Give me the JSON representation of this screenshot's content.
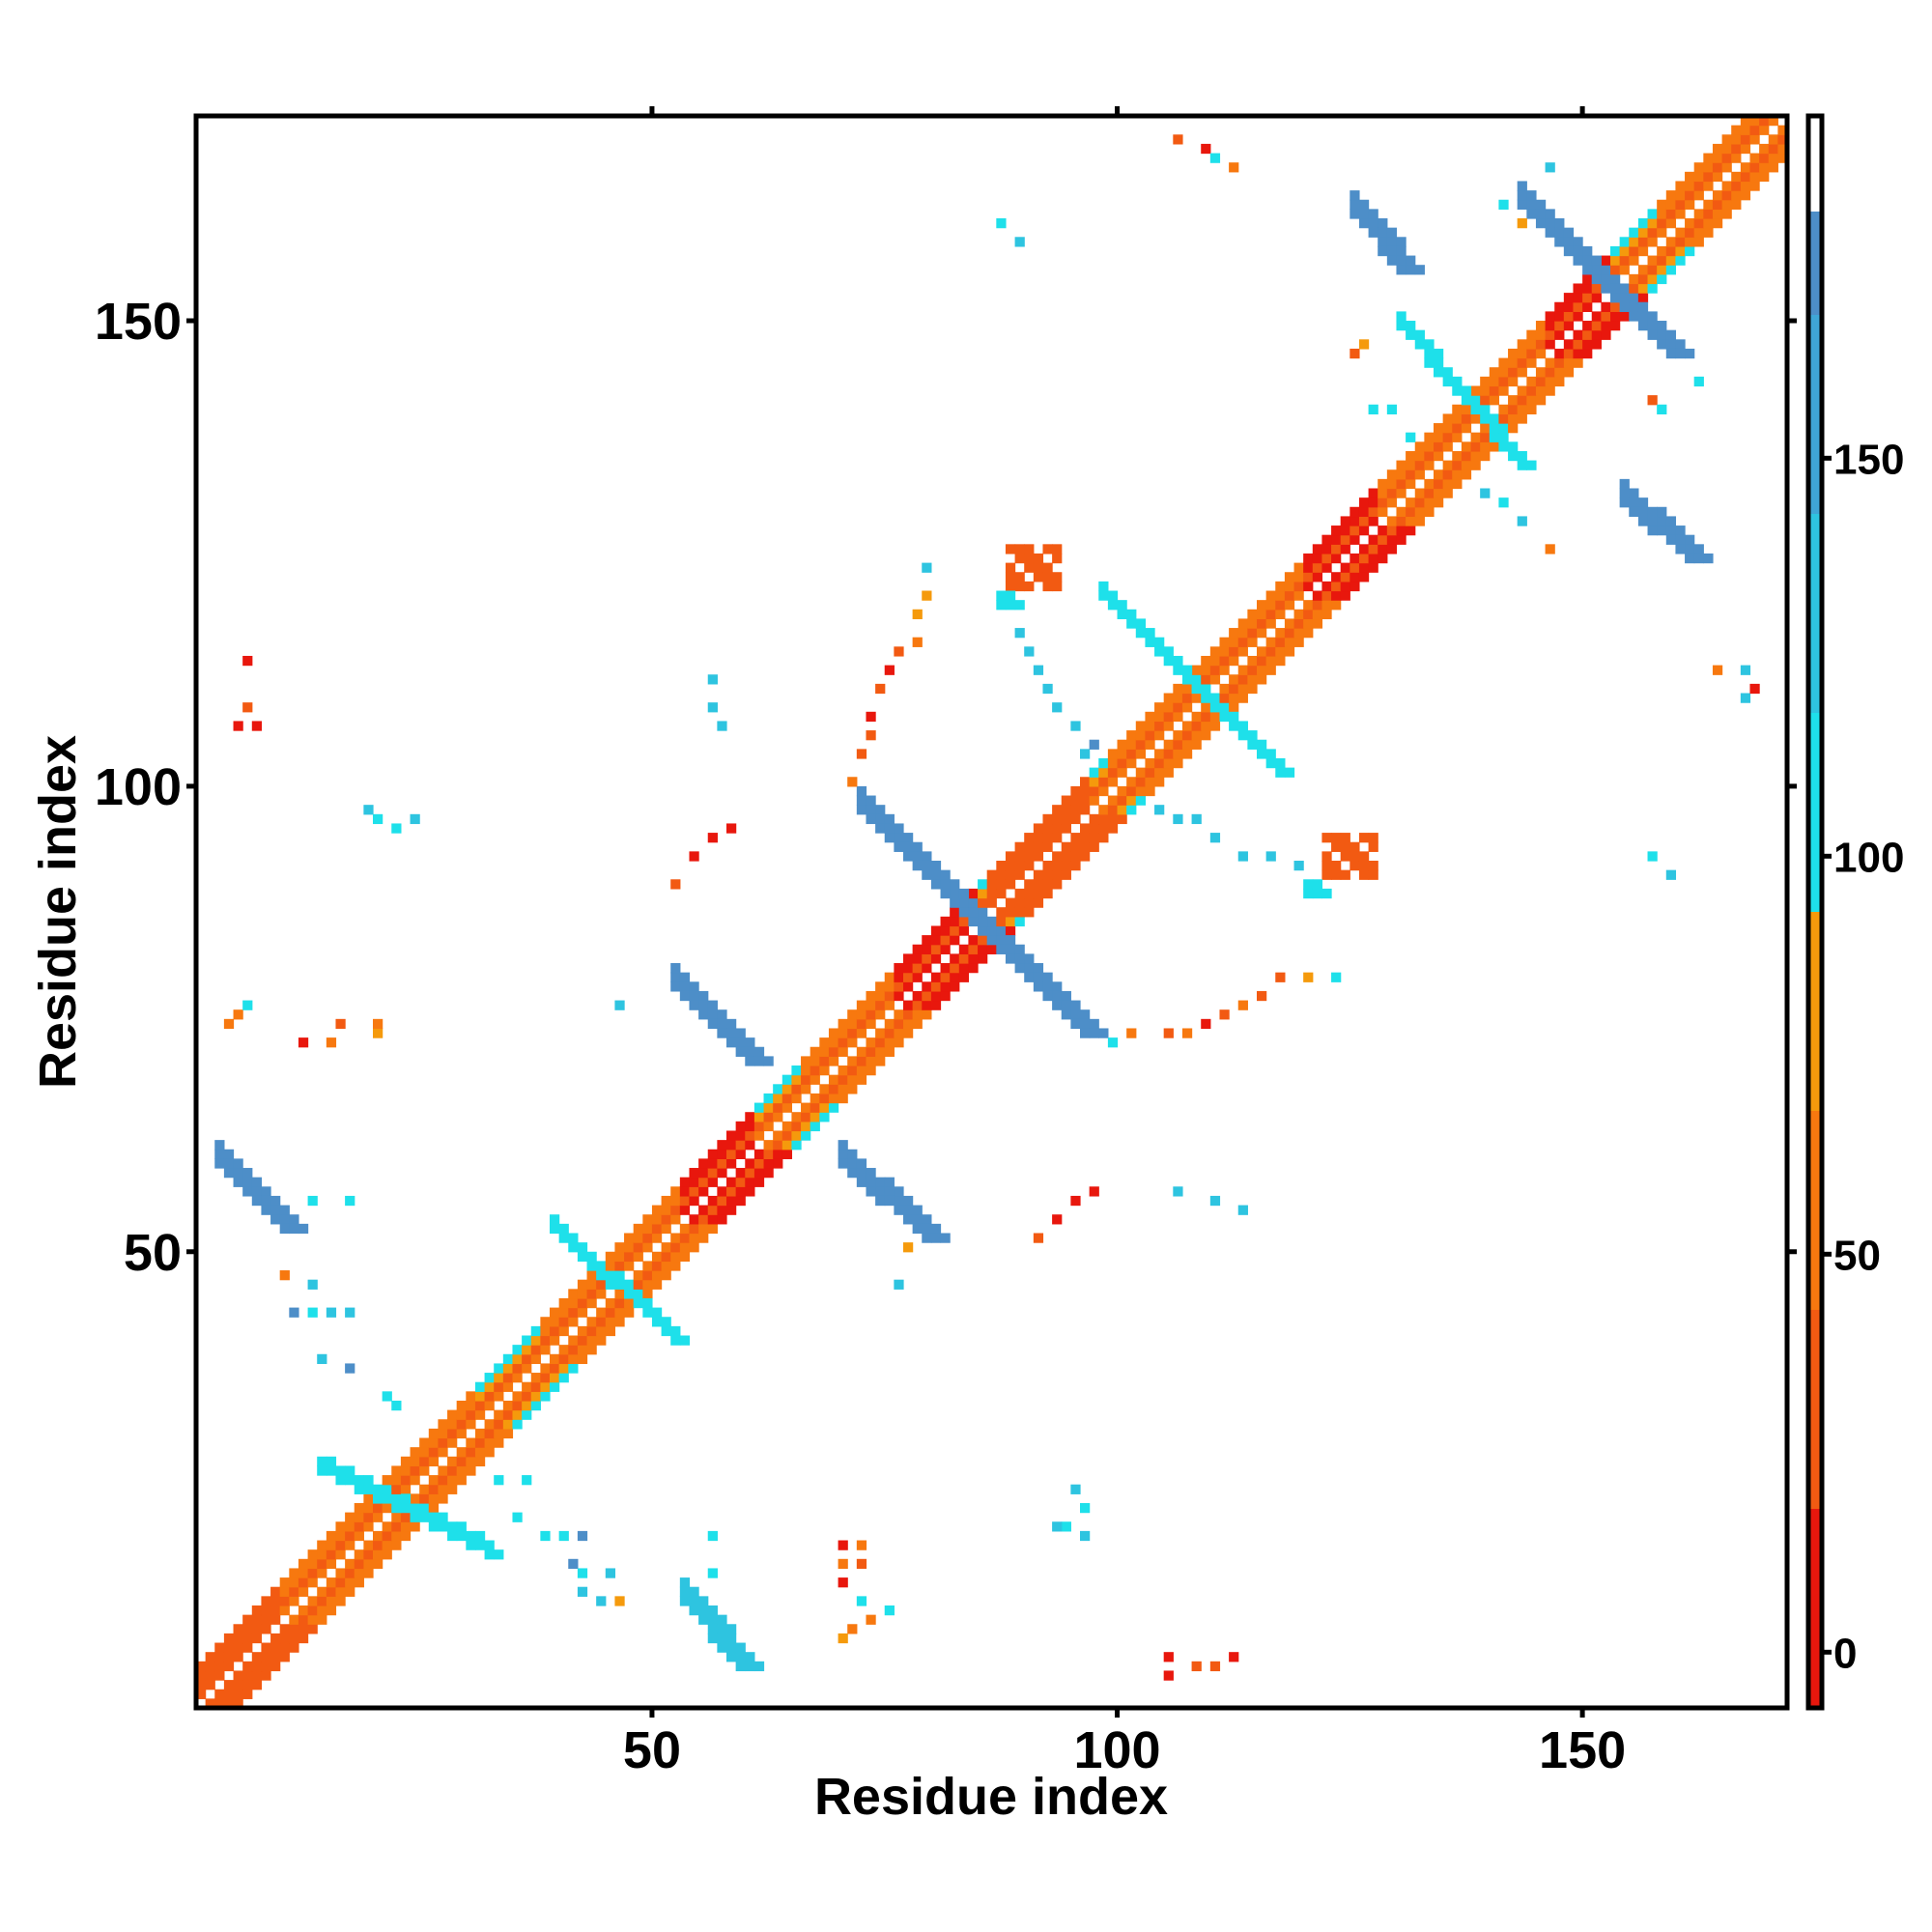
{
  "chart_data": {
    "type": "heatmap",
    "title": "",
    "xlabel": "Residue index",
    "ylabel": "Residue index",
    "n_residues": 171,
    "xlim": [
      1,
      171
    ],
    "ylim": [
      1,
      171
    ],
    "x_ticks": [
      50,
      100,
      150
    ],
    "y_ticks": [
      50,
      100,
      150
    ],
    "colorbar": {
      "ticks": [
        0,
        50,
        100,
        150
      ],
      "range": [
        -7,
        193
      ],
      "stops": [
        {
          "from": -7,
          "to": 18,
          "color": "#e8170d"
        },
        {
          "from": 18,
          "to": 43,
          "color": "#f25a12"
        },
        {
          "from": 43,
          "to": 68,
          "color": "#f7780f"
        },
        {
          "from": 68,
          "to": 93,
          "color": "#f59a0c"
        },
        {
          "from": 93,
          "to": 118,
          "color": "#1ee0ea"
        },
        {
          "from": 118,
          "to": 143,
          "color": "#2ec4e0"
        },
        {
          "from": 143,
          "to": 168,
          "color": "#3fa6d6"
        },
        {
          "from": 168,
          "to": 181,
          "color": "#4d8ec8"
        },
        {
          "from": 181,
          "to": 193,
          "color": "#ffffff"
        }
      ]
    },
    "palette": {
      "red": "#e8170d",
      "orange_red": "#f25a12",
      "orange": "#f7780f",
      "amber": "#f59a0c",
      "cyan": "#1ee0ea",
      "light_blue": "#2ec4e0",
      "mid_blue": "#3fa6d6",
      "steel_blue": "#4d8ec8"
    },
    "features": [
      {
        "kind": "diagonal",
        "from": 1,
        "to": 171,
        "band": [
          {
            "offset": 1,
            "color": "#f7780f"
          },
          {
            "offset": 2,
            "color": "#f25a12"
          },
          {
            "offset": 3,
            "color": "#f59a0c"
          },
          {
            "offset": 4,
            "color": "#1ee0ea"
          }
        ]
      },
      {
        "kind": "helix",
        "from": 1,
        "to": 9,
        "color": "#f25a12"
      },
      {
        "kind": "helix",
        "from": 10,
        "to": 30,
        "color": "#f7780f"
      },
      {
        "kind": "helix",
        "from": 38,
        "to": 52,
        "color": "#f7780f"
      },
      {
        "kind": "helix",
        "from": 53,
        "to": 60,
        "color": "#e8170d"
      },
      {
        "kind": "helix",
        "from": 66,
        "to": 76,
        "color": "#f7780f"
      },
      {
        "kind": "helix",
        "from": 76,
        "to": 84,
        "color": "#e8170d"
      },
      {
        "kind": "helix",
        "from": 86,
        "to": 96,
        "color": "#f25a12"
      },
      {
        "kind": "helix",
        "from": 99,
        "to": 120,
        "color": "#f7780f"
      },
      {
        "kind": "helix",
        "from": 120,
        "to": 128,
        "color": "#e8170d"
      },
      {
        "kind": "helix",
        "from": 128,
        "to": 146,
        "color": "#f7780f"
      },
      {
        "kind": "helix",
        "from": 146,
        "to": 152,
        "color": "#e8170d"
      },
      {
        "kind": "helix",
        "from": 158,
        "to": 171,
        "color": "#f7780f"
      },
      {
        "kind": "anti",
        "start": [
          3,
          59
        ],
        "end": [
          10,
          52
        ],
        "width": 3,
        "color": "#4d8ec8"
      },
      {
        "kind": "anti",
        "start": [
          52,
          78
        ],
        "end": [
          60,
          70
        ],
        "width": 3,
        "color": "#4d8ec8"
      },
      {
        "kind": "anti",
        "start": [
          70,
          59
        ],
        "end": [
          79,
          51
        ],
        "width": 3,
        "color": "#4d8ec8"
      },
      {
        "kind": "anti",
        "start": [
          72,
          97
        ],
        "end": [
          96,
          73
        ],
        "width": 3,
        "color": "#4d8ec8"
      },
      {
        "kind": "anti",
        "start": [
          53,
          12
        ],
        "end": [
          59,
          5
        ],
        "width": 3,
        "color": "#2ec4e0"
      },
      {
        "kind": "anti",
        "start": [
          125,
          161
        ],
        "end": [
          130,
          155
        ],
        "width": 3,
        "color": "#4d8ec8"
      },
      {
        "kind": "anti",
        "start": [
          143,
          162
        ],
        "end": [
          159,
          146
        ],
        "width": 3,
        "color": "#4d8ec8"
      },
      {
        "kind": "anti",
        "start": [
          154,
          130
        ],
        "end": [
          161,
          124
        ],
        "width": 3,
        "color": "#4d8ec8"
      },
      {
        "kind": "anti",
        "start": [
          14,
          26
        ],
        "end": [
          32,
          17
        ],
        "width": 2,
        "color": "#1ee0ea"
      },
      {
        "kind": "anti",
        "start": [
          39,
          52
        ],
        "end": [
          52,
          40
        ],
        "width": 2,
        "color": "#1ee0ea"
      },
      {
        "kind": "anti",
        "start": [
          98,
          120
        ],
        "end": [
          117,
          101
        ],
        "width": 2,
        "color": "#1ee0ea"
      },
      {
        "kind": "anti",
        "start": [
          130,
          149
        ],
        "end": [
          143,
          134
        ],
        "width": 2,
        "color": "#1ee0ea"
      },
      {
        "kind": "blob",
        "x": 88,
        "y": 121,
        "w": 6,
        "h": 5,
        "color": "#f25a12"
      },
      {
        "kind": "blob",
        "x": 122,
        "y": 90,
        "w": 6,
        "h": 5,
        "color": "#f25a12"
      },
      {
        "kind": "blob",
        "x": 87,
        "y": 119,
        "w": 3,
        "h": 2,
        "color": "#1ee0ea"
      },
      {
        "kind": "blob",
        "x": 120,
        "y": 88,
        "w": 3,
        "h": 2,
        "color": "#1ee0ea"
      }
    ],
    "scatter": [
      [
        5,
        106,
        "#e8170d"
      ],
      [
        6,
        108,
        "#f25a12"
      ],
      [
        6,
        113,
        "#e8170d"
      ],
      [
        7,
        106,
        "#e8170d"
      ],
      [
        4,
        74,
        "#f7780f"
      ],
      [
        5,
        75,
        "#f7780f"
      ],
      [
        6,
        76,
        "#1ee0ea"
      ],
      [
        12,
        72,
        "#e8170d"
      ],
      [
        15,
        72,
        "#f7780f"
      ],
      [
        16,
        74,
        "#f25a12"
      ],
      [
        20,
        73,
        "#f59a0c"
      ],
      [
        20,
        74,
        "#f7780f"
      ],
      [
        19,
        97,
        "#2ec4e0"
      ],
      [
        20,
        96,
        "#1ee0ea"
      ],
      [
        22,
        95,
        "#1ee0ea"
      ],
      [
        24,
        96,
        "#2ec4e0"
      ],
      [
        10,
        47,
        "#f7780f"
      ],
      [
        13,
        46,
        "#2ec4e0"
      ],
      [
        11,
        43,
        "#4d8ec8"
      ],
      [
        13,
        43,
        "#1ee0ea"
      ],
      [
        15,
        43,
        "#2ec4e0"
      ],
      [
        17,
        43,
        "#2ec4e0"
      ],
      [
        14,
        38,
        "#2ec4e0"
      ],
      [
        17,
        37,
        "#4d8ec8"
      ],
      [
        21,
        34,
        "#1ee0ea"
      ],
      [
        22,
        33,
        "#1ee0ea"
      ],
      [
        13,
        55,
        "#1ee0ea"
      ],
      [
        17,
        55,
        "#1ee0ea"
      ],
      [
        33,
        25,
        "#1ee0ea"
      ],
      [
        36,
        25,
        "#1ee0ea"
      ],
      [
        35,
        21,
        "#1ee0ea"
      ],
      [
        38,
        19,
        "#1ee0ea"
      ],
      [
        40,
        19,
        "#1ee0ea"
      ],
      [
        42,
        19,
        "#4d8ec8"
      ],
      [
        41,
        16,
        "#4d8ec8"
      ],
      [
        42,
        15,
        "#1ee0ea"
      ],
      [
        45,
        15,
        "#2ec4e0"
      ],
      [
        42,
        13,
        "#2ec4e0"
      ],
      [
        44,
        12,
        "#2ec4e0"
      ],
      [
        46,
        12,
        "#f59a0c"
      ],
      [
        56,
        19,
        "#1ee0ea"
      ],
      [
        56,
        15,
        "#1ee0ea"
      ],
      [
        46,
        76,
        "#2ec4e0"
      ],
      [
        56,
        111,
        "#2ec4e0"
      ],
      [
        56,
        108,
        "#2ec4e0"
      ],
      [
        57,
        106,
        "#2ec4e0"
      ],
      [
        52,
        89,
        "#f25a12"
      ],
      [
        54,
        92,
        "#e8170d"
      ],
      [
        56,
        94,
        "#e8170d"
      ],
      [
        58,
        95,
        "#e8170d"
      ],
      [
        70,
        18,
        "#e8170d"
      ],
      [
        72,
        18,
        "#f7780f"
      ],
      [
        70,
        16,
        "#f7780f"
      ],
      [
        72,
        16,
        "#f25a12"
      ],
      [
        70,
        14,
        "#e8170d"
      ],
      [
        72,
        12,
        "#1ee0ea"
      ],
      [
        73,
        10,
        "#f7780f"
      ],
      [
        71,
        9,
        "#f7780f"
      ],
      [
        70,
        8,
        "#f59a0c"
      ],
      [
        75,
        11,
        "#1ee0ea"
      ],
      [
        76,
        46,
        "#2ec4e0"
      ],
      [
        77,
        50,
        "#f59a0c"
      ],
      [
        71,
        100,
        "#f7780f"
      ],
      [
        72,
        103,
        "#f25a12"
      ],
      [
        73,
        105,
        "#f25a12"
      ],
      [
        73,
        107,
        "#e8170d"
      ],
      [
        74,
        110,
        "#f25a12"
      ],
      [
        75,
        112,
        "#e8170d"
      ],
      [
        76,
        114,
        "#f25a12"
      ],
      [
        78,
        115,
        "#f7780f"
      ],
      [
        78,
        118,
        "#f59a0c"
      ],
      [
        79,
        123,
        "#2ec4e0"
      ],
      [
        79,
        120,
        "#f59a0c"
      ],
      [
        89,
        116,
        "#2ec4e0"
      ],
      [
        90,
        114,
        "#2ec4e0"
      ],
      [
        91,
        112,
        "#2ec4e0"
      ],
      [
        92,
        110,
        "#2ec4e0"
      ],
      [
        93,
        108,
        "#2ec4e0"
      ],
      [
        95,
        106,
        "#2ec4e0"
      ],
      [
        96,
        103,
        "#2ec4e0"
      ],
      [
        97,
        104,
        "#4d8ec8"
      ],
      [
        87,
        160,
        "#1ee0ea"
      ],
      [
        89,
        158,
        "#2ec4e0"
      ],
      [
        91,
        51,
        "#f25a12"
      ],
      [
        93,
        53,
        "#e8170d"
      ],
      [
        95,
        55,
        "#e8170d"
      ],
      [
        97,
        56,
        "#e8170d"
      ],
      [
        99,
        72,
        "#1ee0ea"
      ],
      [
        101,
        73,
        "#f7780f"
      ],
      [
        105,
        73,
        "#f25a12"
      ],
      [
        107,
        73,
        "#f7780f"
      ],
      [
        109,
        74,
        "#e8170d"
      ],
      [
        111,
        75,
        "#f25a12"
      ],
      [
        113,
        76,
        "#f7780f"
      ],
      [
        115,
        77,
        "#f25a12"
      ],
      [
        117,
        79,
        "#f25a12"
      ],
      [
        120,
        79,
        "#f59a0c"
      ],
      [
        123,
        79,
        "#1ee0ea"
      ],
      [
        104,
        97,
        "#2ec4e0"
      ],
      [
        106,
        96,
        "#2ec4e0"
      ],
      [
        108,
        96,
        "#2ec4e0"
      ],
      [
        110,
        94,
        "#2ec4e0"
      ],
      [
        113,
        92,
        "#2ec4e0"
      ],
      [
        116,
        92,
        "#2ec4e0"
      ],
      [
        119,
        91,
        "#2ec4e0"
      ],
      [
        106,
        56,
        "#2ec4e0"
      ],
      [
        110,
        55,
        "#2ec4e0"
      ],
      [
        113,
        54,
        "#2ec4e0"
      ],
      [
        95,
        24,
        "#2ec4e0"
      ],
      [
        96,
        22,
        "#1ee0ea"
      ],
      [
        94,
        20,
        "#1ee0ea"
      ],
      [
        96,
        19,
        "#2ec4e0"
      ],
      [
        93,
        20,
        "#2ec4e0"
      ],
      [
        105,
        6,
        "#e8170d"
      ],
      [
        105,
        4,
        "#e8170d"
      ],
      [
        108,
        5,
        "#f25a12"
      ],
      [
        110,
        5,
        "#f25a12"
      ],
      [
        112,
        6,
        "#e8170d"
      ],
      [
        106,
        169,
        "#f25a12"
      ],
      [
        109,
        168,
        "#e8170d"
      ],
      [
        110,
        167,
        "#1ee0ea"
      ],
      [
        112,
        166,
        "#f7780f"
      ],
      [
        125,
        146,
        "#f25a12"
      ],
      [
        126,
        147,
        "#f59a0c"
      ],
      [
        127,
        140,
        "#1ee0ea"
      ],
      [
        129,
        140,
        "#1ee0ea"
      ],
      [
        131,
        137,
        "#1ee0ea"
      ],
      [
        141,
        162,
        "#1ee0ea"
      ],
      [
        143,
        160,
        "#f59a0c"
      ],
      [
        146,
        166,
        "#2ec4e0"
      ],
      [
        139,
        131,
        "#2ec4e0"
      ],
      [
        141,
        130,
        "#1ee0ea"
      ],
      [
        143,
        128,
        "#2ec4e0"
      ],
      [
        146,
        125,
        "#f7780f"
      ],
      [
        157,
        141,
        "#f25a12"
      ],
      [
        158,
        140,
        "#1ee0ea"
      ],
      [
        162,
        143,
        "#1ee0ea"
      ],
      [
        157,
        92,
        "#1ee0ea"
      ],
      [
        159,
        90,
        "#2ec4e0"
      ],
      [
        164,
        112,
        "#f7780f"
      ],
      [
        167,
        112,
        "#2ec4e0"
      ],
      [
        167,
        109,
        "#2ec4e0"
      ],
      [
        168,
        110,
        "#e8170d"
      ]
    ]
  }
}
